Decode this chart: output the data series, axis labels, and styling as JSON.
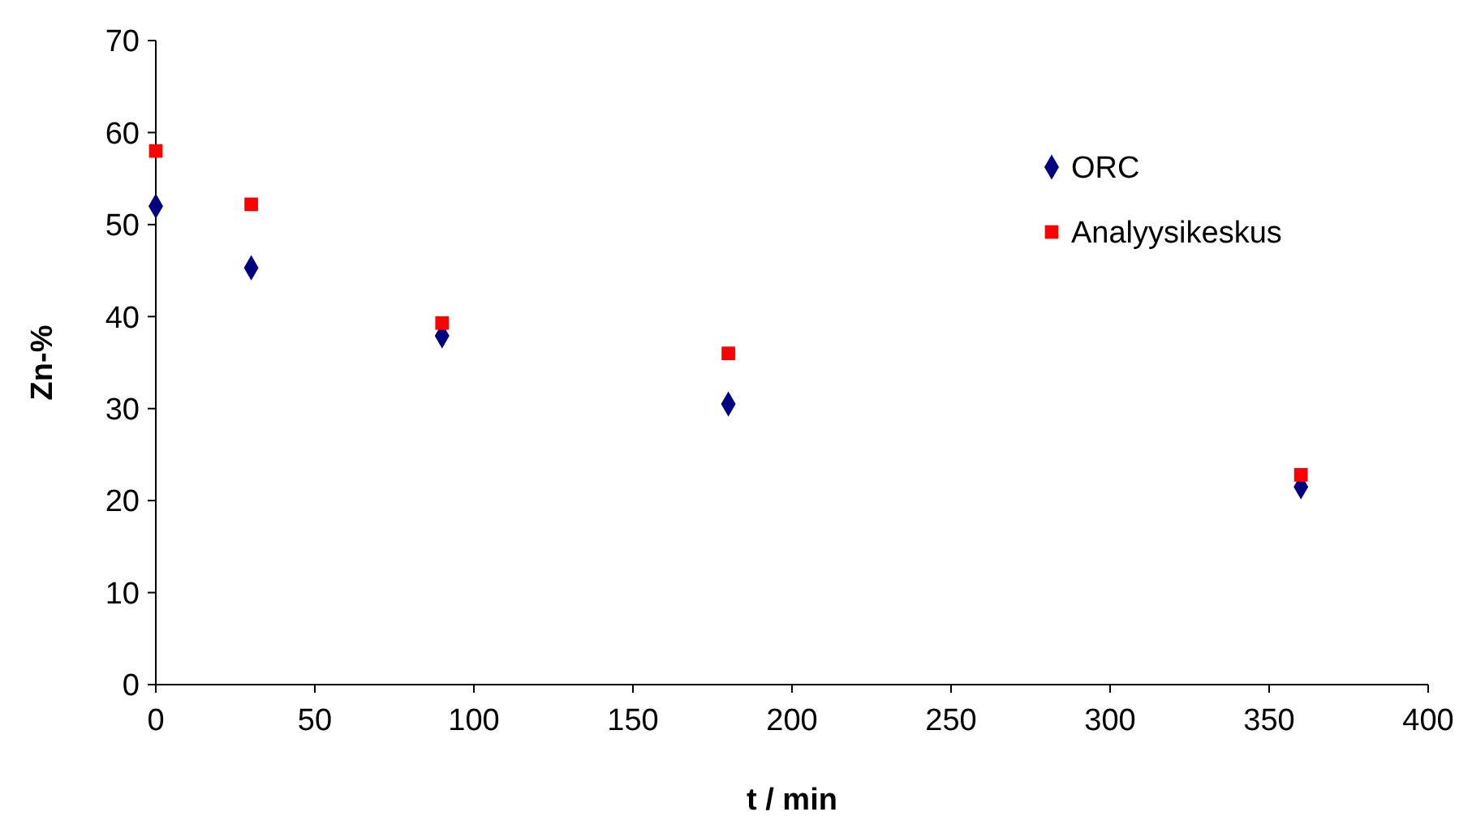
{
  "chart_data": {
    "type": "scatter",
    "xlabel": "t / min",
    "ylabel": "Zn-%",
    "xlim": [
      0,
      400
    ],
    "xticks": [
      0,
      50,
      100,
      150,
      200,
      250,
      300,
      350,
      400
    ],
    "ylim": [
      0,
      70
    ],
    "yticks": [
      0,
      10,
      20,
      30,
      40,
      50,
      60,
      70
    ],
    "grid": false,
    "legend": "top right",
    "series": [
      {
        "name": "ORC",
        "color": "#000080",
        "marker": "diamond",
        "x": [
          0,
          30,
          90,
          180,
          360
        ],
        "values": [
          52.0,
          45.3,
          37.9,
          30.5,
          21.5
        ]
      },
      {
        "name": "Analyysikeskus",
        "color": "#ff0000",
        "marker": "square",
        "x": [
          0,
          30,
          90,
          180,
          360
        ],
        "values": [
          58.0,
          52.2,
          39.3,
          36.0,
          22.8
        ]
      }
    ]
  }
}
